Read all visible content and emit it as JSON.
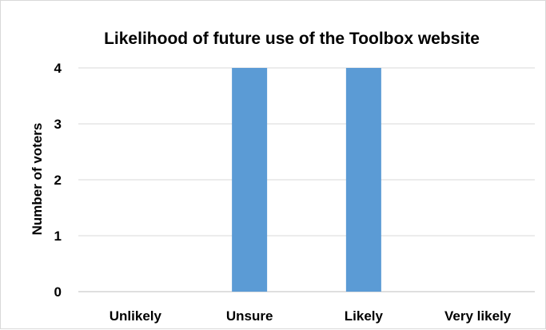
{
  "chart_data": {
    "type": "bar",
    "title": "Likelihood of future use of the Toolbox website",
    "xlabel": "",
    "ylabel": "Number of voters",
    "categories": [
      "Unlikely",
      "Unsure",
      "Likely",
      "Very likely"
    ],
    "values": [
      0,
      4,
      4,
      0
    ],
    "ylim": [
      0,
      4
    ],
    "yticks": [
      "0",
      "1",
      "2",
      "3",
      "4"
    ],
    "grid": true,
    "legend": "none",
    "colors": {
      "bar": "#5b9bd5",
      "grid": "#d9d9d9",
      "axis": "#bfbfbf"
    }
  }
}
